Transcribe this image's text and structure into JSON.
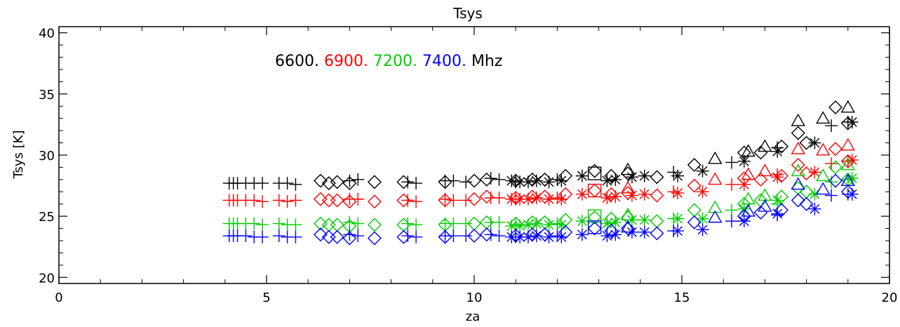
{
  "chart_data": {
    "type": "scatter",
    "title": "Tsys",
    "xlabel": "za",
    "ylabel": "Tsys [K]",
    "xlim": [
      0,
      20
    ],
    "ylim": [
      19.5,
      40.5
    ],
    "xticks": [
      0,
      5,
      10,
      15,
      20
    ],
    "yticks": [
      20,
      25,
      30,
      35,
      40
    ],
    "grid": false,
    "legend": {
      "placement": "top-left-inside",
      "entries": [
        {
          "label": "6600.",
          "color": "#000000"
        },
        {
          "label": "6900.",
          "color": "#ff0000"
        },
        {
          "label": "7200.",
          "color": "#00cc00"
        },
        {
          "label": "7400.",
          "color": "#0000ff"
        }
      ],
      "unit": "Mhz"
    },
    "series": [
      {
        "name": "6600.",
        "color": "#000000",
        "plus": [
          [
            4.1,
            27.7
          ],
          [
            4.2,
            27.7
          ],
          [
            4.3,
            27.7
          ],
          [
            4.5,
            27.7
          ],
          [
            4.7,
            27.7
          ],
          [
            4.9,
            27.7
          ],
          [
            5.3,
            27.7
          ],
          [
            5.5,
            27.7
          ],
          [
            5.7,
            27.6
          ],
          [
            7.0,
            27.9
          ],
          [
            7.2,
            28.0
          ],
          [
            8.4,
            27.8
          ],
          [
            8.6,
            27.7
          ],
          [
            9.3,
            27.9
          ],
          [
            9.5,
            27.9
          ],
          [
            9.8,
            27.8
          ],
          [
            10.4,
            28.1
          ],
          [
            10.6,
            28.0
          ],
          [
            11.0,
            27.8
          ],
          [
            12.0,
            28.0
          ],
          [
            14.8,
            28.6
          ],
          [
            16.2,
            29.4
          ],
          [
            17.3,
            30.6
          ],
          [
            18.6,
            32.4
          ],
          [
            19.0,
            32.7
          ]
        ],
        "diamond": [
          [
            6.3,
            27.9
          ],
          [
            6.5,
            27.7
          ],
          [
            6.7,
            27.8
          ],
          [
            7.0,
            27.7
          ],
          [
            7.6,
            27.8
          ],
          [
            8.3,
            27.8
          ],
          [
            9.3,
            27.8
          ],
          [
            10.0,
            27.9
          ],
          [
            10.3,
            28.0
          ],
          [
            11.0,
            27.9
          ],
          [
            11.4,
            28.0
          ],
          [
            11.7,
            28.0
          ],
          [
            12.2,
            28.3
          ],
          [
            12.9,
            28.7
          ],
          [
            13.3,
            28.3
          ],
          [
            13.7,
            28.5
          ],
          [
            14.4,
            28.2
          ],
          [
            15.3,
            29.2
          ],
          [
            16.5,
            30.2
          ],
          [
            16.9,
            30.2
          ],
          [
            17.4,
            30.7
          ],
          [
            17.8,
            31.8
          ],
          [
            18.0,
            31.0
          ],
          [
            18.7,
            33.9
          ],
          [
            19.0,
            32.6
          ]
        ],
        "triangle": [
          [
            13.7,
            28.8
          ],
          [
            15.8,
            29.7
          ],
          [
            16.6,
            30.3
          ],
          [
            17.0,
            30.7
          ],
          [
            17.8,
            32.8
          ],
          [
            18.4,
            33.0
          ],
          [
            19.0,
            33.9
          ]
        ],
        "asterisk": [
          [
            10.9,
            27.9
          ],
          [
            11.1,
            27.8
          ],
          [
            11.3,
            27.8
          ],
          [
            11.5,
            27.9
          ],
          [
            11.8,
            27.8
          ],
          [
            12.1,
            27.9
          ],
          [
            12.6,
            28.3
          ],
          [
            13.2,
            27.9
          ],
          [
            13.4,
            28.0
          ],
          [
            13.8,
            28.2
          ],
          [
            14.1,
            28.3
          ],
          [
            14.9,
            28.3
          ],
          [
            15.5,
            28.7
          ],
          [
            16.5,
            29.5
          ],
          [
            17.3,
            30.3
          ],
          [
            18.2,
            31.0
          ],
          [
            19.1,
            32.7
          ]
        ],
        "square": [
          [
            12.9,
            28.5
          ]
        ]
      },
      {
        "name": "6900.",
        "color": "#ff0000",
        "plus": [
          [
            4.1,
            26.3
          ],
          [
            4.2,
            26.3
          ],
          [
            4.3,
            26.3
          ],
          [
            4.5,
            26.3
          ],
          [
            4.7,
            26.3
          ],
          [
            4.9,
            26.2
          ],
          [
            5.3,
            26.3
          ],
          [
            5.5,
            26.2
          ],
          [
            5.7,
            26.3
          ],
          [
            7.0,
            26.4
          ],
          [
            7.2,
            26.4
          ],
          [
            8.4,
            26.3
          ],
          [
            8.6,
            26.2
          ],
          [
            9.3,
            26.4
          ],
          [
            9.5,
            26.3
          ],
          [
            9.8,
            26.3
          ],
          [
            10.4,
            26.5
          ],
          [
            10.6,
            26.5
          ],
          [
            11.0,
            26.4
          ],
          [
            12.0,
            26.5
          ],
          [
            14.8,
            27.0
          ],
          [
            16.2,
            27.6
          ],
          [
            17.3,
            28.4
          ],
          [
            18.6,
            29.3
          ],
          [
            19.0,
            29.5
          ]
        ],
        "diamond": [
          [
            6.3,
            26.4
          ],
          [
            6.5,
            26.3
          ],
          [
            6.7,
            26.3
          ],
          [
            7.0,
            26.2
          ],
          [
            7.6,
            26.2
          ],
          [
            8.3,
            26.3
          ],
          [
            9.3,
            26.3
          ],
          [
            10.0,
            26.4
          ],
          [
            10.3,
            26.6
          ],
          [
            11.0,
            26.5
          ],
          [
            11.4,
            26.6
          ],
          [
            11.7,
            26.6
          ],
          [
            12.2,
            26.8
          ],
          [
            12.9,
            27.1
          ],
          [
            13.3,
            26.8
          ],
          [
            13.7,
            26.9
          ],
          [
            14.4,
            26.7
          ],
          [
            15.3,
            27.5
          ],
          [
            16.5,
            28.1
          ],
          [
            16.9,
            28.0
          ],
          [
            17.4,
            28.3
          ],
          [
            17.8,
            29.2
          ],
          [
            18.0,
            28.5
          ],
          [
            18.7,
            30.5
          ],
          [
            19.0,
            29.5
          ]
        ],
        "triangle": [
          [
            13.7,
            27.3
          ],
          [
            15.8,
            28.0
          ],
          [
            16.6,
            28.4
          ],
          [
            17.0,
            28.7
          ],
          [
            17.8,
            30.5
          ],
          [
            18.4,
            30.4
          ],
          [
            19.0,
            30.8
          ]
        ],
        "asterisk": [
          [
            10.9,
            26.4
          ],
          [
            11.1,
            26.4
          ],
          [
            11.3,
            26.4
          ],
          [
            11.5,
            26.5
          ],
          [
            11.8,
            26.4
          ],
          [
            12.1,
            26.4
          ],
          [
            12.6,
            26.8
          ],
          [
            13.2,
            26.5
          ],
          [
            13.4,
            26.6
          ],
          [
            13.8,
            26.7
          ],
          [
            14.1,
            26.8
          ],
          [
            14.9,
            26.9
          ],
          [
            15.5,
            27.0
          ],
          [
            16.5,
            27.6
          ],
          [
            17.3,
            28.2
          ],
          [
            18.2,
            28.6
          ],
          [
            19.1,
            29.6
          ]
        ],
        "square": [
          [
            12.9,
            27.1
          ]
        ]
      },
      {
        "name": "7200.",
        "color": "#00cc00",
        "plus": [
          [
            4.1,
            24.4
          ],
          [
            4.2,
            24.4
          ],
          [
            4.3,
            24.4
          ],
          [
            4.5,
            24.4
          ],
          [
            4.7,
            24.4
          ],
          [
            4.9,
            24.3
          ],
          [
            5.3,
            24.4
          ],
          [
            5.5,
            24.3
          ],
          [
            5.7,
            24.3
          ],
          [
            7.0,
            24.5
          ],
          [
            7.2,
            24.4
          ],
          [
            8.4,
            24.4
          ],
          [
            8.6,
            24.3
          ],
          [
            9.3,
            24.4
          ],
          [
            9.5,
            24.4
          ],
          [
            9.8,
            24.4
          ],
          [
            10.4,
            24.5
          ],
          [
            10.6,
            24.5
          ],
          [
            11.0,
            24.3
          ],
          [
            12.0,
            24.4
          ],
          [
            14.8,
            24.8
          ],
          [
            16.2,
            25.5
          ],
          [
            17.3,
            26.0
          ],
          [
            18.6,
            27.8
          ],
          [
            19.0,
            28.0
          ]
        ],
        "diamond": [
          [
            6.3,
            24.4
          ],
          [
            6.5,
            24.3
          ],
          [
            6.7,
            24.3
          ],
          [
            7.0,
            24.2
          ],
          [
            7.6,
            24.3
          ],
          [
            8.3,
            24.3
          ],
          [
            9.3,
            24.3
          ],
          [
            10.0,
            24.4
          ],
          [
            10.3,
            24.5
          ],
          [
            11.0,
            24.4
          ],
          [
            11.4,
            24.5
          ],
          [
            11.7,
            24.5
          ],
          [
            12.2,
            24.7
          ],
          [
            12.9,
            24.9
          ],
          [
            13.3,
            24.8
          ],
          [
            13.7,
            24.9
          ],
          [
            14.4,
            24.6
          ],
          [
            15.3,
            25.5
          ],
          [
            16.5,
            26.0
          ],
          [
            16.9,
            26.3
          ],
          [
            17.4,
            26.6
          ],
          [
            17.8,
            27.3
          ],
          [
            18.0,
            27.0
          ],
          [
            18.7,
            29.0
          ],
          [
            19.0,
            28.0
          ]
        ],
        "triangle": [
          [
            13.7,
            25.1
          ],
          [
            15.8,
            25.7
          ],
          [
            16.6,
            26.4
          ],
          [
            17.0,
            26.7
          ],
          [
            17.8,
            28.7
          ],
          [
            18.4,
            28.3
          ],
          [
            19.0,
            29.2
          ]
        ],
        "asterisk": [
          [
            10.9,
            24.2
          ],
          [
            11.1,
            24.2
          ],
          [
            11.3,
            24.3
          ],
          [
            11.5,
            24.4
          ],
          [
            11.8,
            24.3
          ],
          [
            12.1,
            24.3
          ],
          [
            12.6,
            24.6
          ],
          [
            13.2,
            24.4
          ],
          [
            13.4,
            24.5
          ],
          [
            13.8,
            24.7
          ],
          [
            14.1,
            24.7
          ],
          [
            14.9,
            24.8
          ],
          [
            15.5,
            24.8
          ],
          [
            16.5,
            25.6
          ],
          [
            17.3,
            26.3
          ],
          [
            18.2,
            26.8
          ],
          [
            19.1,
            28.1
          ]
        ],
        "square": [
          [
            12.9,
            25.0
          ]
        ]
      },
      {
        "name": "7400.",
        "color": "#0000ff",
        "plus": [
          [
            4.1,
            23.4
          ],
          [
            4.2,
            23.4
          ],
          [
            4.3,
            23.4
          ],
          [
            4.5,
            23.4
          ],
          [
            4.7,
            23.3
          ],
          [
            4.9,
            23.3
          ],
          [
            5.3,
            23.4
          ],
          [
            5.5,
            23.3
          ],
          [
            5.7,
            23.3
          ],
          [
            7.0,
            23.5
          ],
          [
            7.2,
            23.4
          ],
          [
            8.4,
            23.4
          ],
          [
            8.6,
            23.3
          ],
          [
            9.3,
            23.4
          ],
          [
            9.5,
            23.4
          ],
          [
            9.8,
            23.4
          ],
          [
            10.4,
            23.5
          ],
          [
            10.6,
            23.4
          ],
          [
            11.0,
            23.3
          ],
          [
            12.0,
            23.4
          ],
          [
            14.8,
            23.8
          ],
          [
            16.2,
            24.6
          ],
          [
            17.3,
            25.1
          ],
          [
            18.6,
            26.7
          ],
          [
            19.0,
            26.8
          ]
        ],
        "diamond": [
          [
            6.3,
            23.5
          ],
          [
            6.5,
            23.3
          ],
          [
            6.7,
            23.3
          ],
          [
            7.0,
            23.2
          ],
          [
            7.6,
            23.2
          ],
          [
            8.3,
            23.3
          ],
          [
            9.3,
            23.3
          ],
          [
            10.0,
            23.4
          ],
          [
            10.3,
            23.5
          ],
          [
            11.0,
            23.4
          ],
          [
            11.4,
            23.5
          ],
          [
            11.7,
            23.5
          ],
          [
            12.2,
            23.7
          ],
          [
            12.9,
            24.0
          ],
          [
            13.3,
            23.8
          ],
          [
            13.7,
            24.0
          ],
          [
            14.4,
            23.6
          ],
          [
            15.3,
            24.5
          ],
          [
            16.5,
            25.0
          ],
          [
            16.9,
            25.3
          ],
          [
            17.4,
            25.5
          ],
          [
            17.8,
            26.3
          ],
          [
            18.0,
            26.0
          ],
          [
            18.7,
            27.9
          ],
          [
            19.0,
            27.0
          ]
        ],
        "triangle": [
          [
            13.7,
            24.1
          ],
          [
            15.8,
            24.9
          ],
          [
            16.6,
            25.4
          ],
          [
            17.0,
            25.8
          ],
          [
            17.8,
            27.6
          ],
          [
            18.4,
            27.2
          ],
          [
            19.0,
            27.9
          ]
        ],
        "asterisk": [
          [
            10.9,
            23.3
          ],
          [
            11.1,
            23.3
          ],
          [
            11.3,
            23.3
          ],
          [
            11.5,
            23.4
          ],
          [
            11.8,
            23.3
          ],
          [
            12.1,
            23.3
          ],
          [
            12.6,
            23.5
          ],
          [
            13.2,
            23.4
          ],
          [
            13.4,
            23.5
          ],
          [
            13.8,
            23.7
          ],
          [
            14.1,
            23.7
          ],
          [
            14.9,
            23.8
          ],
          [
            15.5,
            23.9
          ],
          [
            16.5,
            24.6
          ],
          [
            17.3,
            25.2
          ],
          [
            18.2,
            25.6
          ],
          [
            19.1,
            26.8
          ]
        ],
        "square": [
          [
            12.9,
            24.1
          ]
        ]
      }
    ]
  }
}
